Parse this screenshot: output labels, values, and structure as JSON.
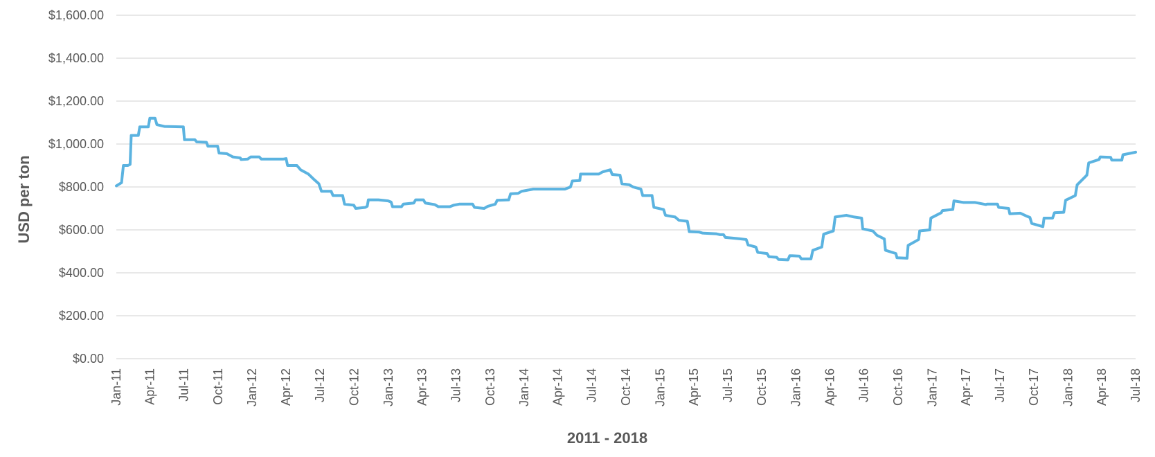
{
  "chart_data": {
    "type": "line",
    "title": "",
    "xlabel": "2011 - 2018",
    "ylabel": "USD per ton",
    "ylim": [
      0,
      1600
    ],
    "y_ticks": [
      {
        "value": 0,
        "label": "$0.00"
      },
      {
        "value": 200,
        "label": "$200.00"
      },
      {
        "value": 400,
        "label": "$400.00"
      },
      {
        "value": 600,
        "label": "$600.00"
      },
      {
        "value": 800,
        "label": "$800.00"
      },
      {
        "value": 1000,
        "label": "$1,000.00"
      },
      {
        "value": 1200,
        "label": "$1,200.00"
      },
      {
        "value": 1400,
        "label": "$1,400.00"
      },
      {
        "value": 1600,
        "label": "$1,600.00"
      }
    ],
    "x_ticks": [
      "Jan-11",
      "Apr-11",
      "Jul-11",
      "Oct-11",
      "Jan-12",
      "Apr-12",
      "Jul-12",
      "Oct-12",
      "Jan-13",
      "Apr-13",
      "Jul-13",
      "Oct-13",
      "Jan-14",
      "Apr-14",
      "Jul-14",
      "Oct-14",
      "Jan-15",
      "Apr-15",
      "Jul-15",
      "Oct-15",
      "Jan-16",
      "Apr-16",
      "Jul-16",
      "Oct-16",
      "Jan-17",
      "Apr-17",
      "Jul-17",
      "Oct-17",
      "Jan-18",
      "Apr-18",
      "Jul-18"
    ],
    "grid": true,
    "legend": "none",
    "series": [
      {
        "color": "#5BB3E0",
        "points": [
          [
            "2011-01-01",
            805
          ],
          [
            "2011-01-15",
            820
          ],
          [
            "2011-01-20",
            900
          ],
          [
            "2011-02-01",
            900
          ],
          [
            "2011-02-07",
            905
          ],
          [
            "2011-02-10",
            1040
          ],
          [
            "2011-03-01",
            1040
          ],
          [
            "2011-03-05",
            1080
          ],
          [
            "2011-03-28",
            1080
          ],
          [
            "2011-04-01",
            1120
          ],
          [
            "2011-04-15",
            1120
          ],
          [
            "2011-04-20",
            1090
          ],
          [
            "2011-05-10",
            1082
          ],
          [
            "2011-06-30",
            1080
          ],
          [
            "2011-07-03",
            1020
          ],
          [
            "2011-07-31",
            1020
          ],
          [
            "2011-08-05",
            1010
          ],
          [
            "2011-08-31",
            1008
          ],
          [
            "2011-09-04",
            990
          ],
          [
            "2011-09-30",
            990
          ],
          [
            "2011-10-04",
            958
          ],
          [
            "2011-10-25",
            955
          ],
          [
            "2011-11-10",
            940
          ],
          [
            "2011-11-30",
            935
          ],
          [
            "2011-12-02",
            928
          ],
          [
            "2011-12-20",
            930
          ],
          [
            "2011-12-28",
            940
          ],
          [
            "2012-01-20",
            940
          ],
          [
            "2012-01-25",
            930
          ],
          [
            "2012-03-25",
            930
          ],
          [
            "2012-04-01",
            932
          ],
          [
            "2012-04-05",
            900
          ],
          [
            "2012-04-30",
            900
          ],
          [
            "2012-05-10",
            880
          ],
          [
            "2012-05-31",
            860
          ],
          [
            "2012-06-15",
            835
          ],
          [
            "2012-06-28",
            815
          ],
          [
            "2012-07-05",
            780
          ],
          [
            "2012-07-31",
            780
          ],
          [
            "2012-08-05",
            760
          ],
          [
            "2012-08-31",
            760
          ],
          [
            "2012-09-05",
            720
          ],
          [
            "2012-09-30",
            715
          ],
          [
            "2012-10-05",
            700
          ],
          [
            "2012-10-31",
            705
          ],
          [
            "2012-11-05",
            710
          ],
          [
            "2012-11-08",
            740
          ],
          [
            "2012-12-05",
            740
          ],
          [
            "2012-12-31",
            735
          ],
          [
            "2013-01-08",
            730
          ],
          [
            "2013-01-12",
            708
          ],
          [
            "2013-02-05",
            708
          ],
          [
            "2013-02-10",
            720
          ],
          [
            "2013-03-10",
            725
          ],
          [
            "2013-03-15",
            740
          ],
          [
            "2013-04-05",
            740
          ],
          [
            "2013-04-10",
            725
          ],
          [
            "2013-05-05",
            718
          ],
          [
            "2013-05-15",
            708
          ],
          [
            "2013-06-15",
            708
          ],
          [
            "2013-06-25",
            715
          ],
          [
            "2013-07-10",
            720
          ],
          [
            "2013-08-15",
            720
          ],
          [
            "2013-08-20",
            705
          ],
          [
            "2013-09-15",
            700
          ],
          [
            "2013-09-25",
            710
          ],
          [
            "2013-10-15",
            720
          ],
          [
            "2013-10-20",
            738
          ],
          [
            "2013-11-20",
            740
          ],
          [
            "2013-11-25",
            768
          ],
          [
            "2013-12-15",
            770
          ],
          [
            "2013-12-25",
            780
          ],
          [
            "2014-01-25",
            790
          ],
          [
            "2014-04-20",
            790
          ],
          [
            "2014-05-05",
            800
          ],
          [
            "2014-05-10",
            828
          ],
          [
            "2014-05-30",
            830
          ],
          [
            "2014-06-01",
            860
          ],
          [
            "2014-07-20",
            860
          ],
          [
            "2014-07-30",
            870
          ],
          [
            "2014-08-20",
            880
          ],
          [
            "2014-08-25",
            858
          ],
          [
            "2014-09-15",
            855
          ],
          [
            "2014-09-20",
            815
          ],
          [
            "2014-10-10",
            810
          ],
          [
            "2014-10-20",
            800
          ],
          [
            "2014-11-10",
            790
          ],
          [
            "2014-11-15",
            760
          ],
          [
            "2014-12-10",
            760
          ],
          [
            "2014-12-15",
            705
          ],
          [
            "2015-01-10",
            695
          ],
          [
            "2015-01-15",
            668
          ],
          [
            "2015-02-10",
            660
          ],
          [
            "2015-02-20",
            645
          ],
          [
            "2015-03-15",
            640
          ],
          [
            "2015-03-20",
            592
          ],
          [
            "2015-04-15",
            590
          ],
          [
            "2015-04-25",
            585
          ],
          [
            "2015-05-31",
            582
          ],
          [
            "2015-06-10",
            578
          ],
          [
            "2015-06-20",
            578
          ],
          [
            "2015-06-25",
            565
          ],
          [
            "2015-07-25",
            560
          ],
          [
            "2015-08-05",
            558
          ],
          [
            "2015-08-20",
            555
          ],
          [
            "2015-08-25",
            530
          ],
          [
            "2015-09-15",
            520
          ],
          [
            "2015-09-20",
            495
          ],
          [
            "2015-10-15",
            490
          ],
          [
            "2015-10-20",
            475
          ],
          [
            "2015-11-10",
            472
          ],
          [
            "2015-11-15",
            462
          ],
          [
            "2015-12-10",
            460
          ],
          [
            "2015-12-15",
            480
          ],
          [
            "2016-01-10",
            478
          ],
          [
            "2016-01-15",
            465
          ],
          [
            "2016-02-10",
            465
          ],
          [
            "2016-02-15",
            505
          ],
          [
            "2016-03-10",
            520
          ],
          [
            "2016-03-15",
            580
          ],
          [
            "2016-04-10",
            595
          ],
          [
            "2016-04-15",
            660
          ],
          [
            "2016-05-15",
            668
          ],
          [
            "2016-06-05",
            660
          ],
          [
            "2016-06-25",
            655
          ],
          [
            "2016-06-28",
            605
          ],
          [
            "2016-07-25",
            595
          ],
          [
            "2016-08-05",
            575
          ],
          [
            "2016-08-25",
            558
          ],
          [
            "2016-08-28",
            505
          ],
          [
            "2016-09-25",
            490
          ],
          [
            "2016-09-28",
            470
          ],
          [
            "2016-10-25",
            468
          ],
          [
            "2016-10-28",
            528
          ],
          [
            "2016-11-15",
            545
          ],
          [
            "2016-11-25",
            555
          ],
          [
            "2016-11-28",
            595
          ],
          [
            "2016-12-25",
            600
          ],
          [
            "2016-12-28",
            655
          ],
          [
            "2017-01-25",
            680
          ],
          [
            "2017-01-28",
            690
          ],
          [
            "2017-02-25",
            695
          ],
          [
            "2017-02-28",
            735
          ],
          [
            "2017-03-25",
            728
          ],
          [
            "2017-04-25",
            728
          ],
          [
            "2017-05-25",
            718
          ],
          [
            "2017-05-28",
            720
          ],
          [
            "2017-06-25",
            720
          ],
          [
            "2017-06-28",
            705
          ],
          [
            "2017-07-25",
            700
          ],
          [
            "2017-07-28",
            675
          ],
          [
            "2017-08-25",
            678
          ],
          [
            "2017-09-10",
            665
          ],
          [
            "2017-09-20",
            658
          ],
          [
            "2017-09-25",
            630
          ],
          [
            "2017-10-25",
            615
          ],
          [
            "2017-10-28",
            655
          ],
          [
            "2017-11-20",
            655
          ],
          [
            "2017-11-25",
            680
          ],
          [
            "2017-12-20",
            682
          ],
          [
            "2017-12-25",
            738
          ],
          [
            "2018-01-20",
            760
          ],
          [
            "2018-01-25",
            810
          ],
          [
            "2018-02-20",
            855
          ],
          [
            "2018-02-25",
            912
          ],
          [
            "2018-03-25",
            928
          ],
          [
            "2018-03-28",
            940
          ],
          [
            "2018-04-25",
            938
          ],
          [
            "2018-04-28",
            925
          ],
          [
            "2018-05-25",
            925
          ],
          [
            "2018-05-28",
            950
          ],
          [
            "2018-06-20",
            958
          ],
          [
            "2018-07-01",
            962
          ]
        ]
      }
    ]
  }
}
